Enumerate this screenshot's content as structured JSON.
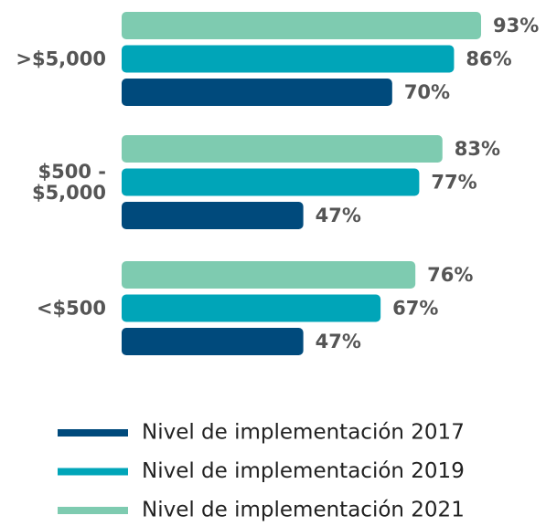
{
  "chart_data": {
    "type": "bar",
    "orientation": "horizontal",
    "categories": [
      ">$5,000",
      "$500 - $5,000",
      "<$500"
    ],
    "series": [
      {
        "name": "Nivel de implementación 2017",
        "color": "#004a7c",
        "values": [
          70,
          47,
          47
        ],
        "value_labels": [
          "70%",
          "47%",
          "47%"
        ]
      },
      {
        "name": "Nivel de implementación 2019",
        "color": "#00a5b8",
        "values": [
          86,
          77,
          67
        ],
        "value_labels": [
          "86%",
          "77%",
          "67%"
        ]
      },
      {
        "name": "Nivel de implementación 2021",
        "color": "#7ecbb0",
        "values": [
          93,
          83,
          76
        ],
        "value_labels": [
          "93%",
          "83%",
          "76%"
        ]
      }
    ]
  }
}
